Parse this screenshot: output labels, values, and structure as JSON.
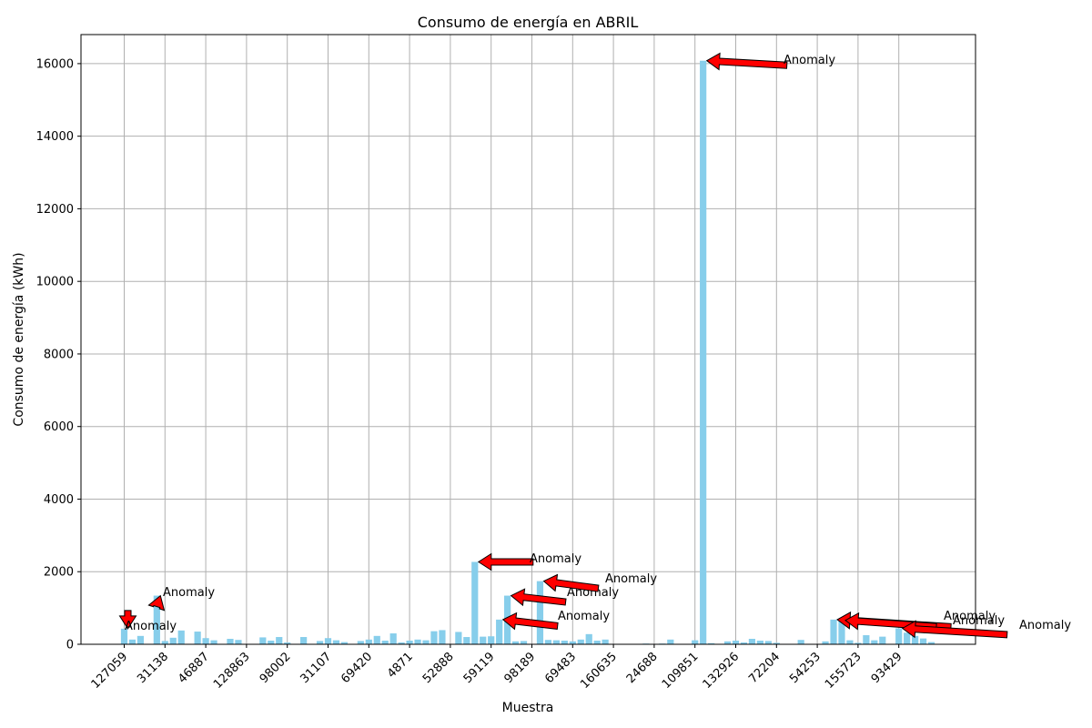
{
  "colors": {
    "bar": "#87CEEB",
    "arrow": "#FF0000",
    "grid": "#B0B0B0"
  },
  "chart_data": {
    "type": "bar",
    "title": "Consumo de energía en ABRIL",
    "xlabel": "Muestra",
    "ylabel": "Consumo de energía (kWh)",
    "ylim": [
      0,
      16800
    ],
    "yticks": [
      0,
      2000,
      4000,
      6000,
      8000,
      10000,
      12000,
      14000,
      16000
    ],
    "grid": true,
    "xtick_labels": [
      "127059",
      "31138",
      "46887",
      "128863",
      "98002",
      "31107",
      "69420",
      "4871",
      "52888",
      "59119",
      "98189",
      "69483",
      "160635",
      "24688",
      "109851",
      "132926",
      "72204",
      "54253",
      "155723",
      "93429"
    ],
    "values": [
      430,
      130,
      230,
      0,
      1340,
      90,
      180,
      380,
      0,
      350,
      170,
      110,
      0,
      150,
      120,
      0,
      0,
      190,
      100,
      200,
      50,
      0,
      200,
      0,
      90,
      170,
      110,
      60,
      0,
      90,
      130,
      230,
      100,
      300,
      50,
      100,
      130,
      110,
      360,
      390,
      0,
      340,
      200,
      2270,
      210,
      220,
      680,
      1340,
      80,
      90,
      0,
      1740,
      120,
      110,
      100,
      80,
      130,
      280,
      100,
      130,
      0,
      0,
      0,
      0,
      20,
      0,
      20,
      130,
      0,
      0,
      110,
      16080,
      30,
      0,
      80,
      100,
      50,
      150,
      100,
      90,
      40,
      0,
      0,
      120,
      0,
      0,
      80,
      680,
      660,
      110,
      40,
      250,
      110,
      210,
      0,
      440,
      320,
      230,
      160,
      60
    ],
    "annotations": [
      {
        "text": "Anomaly",
        "index": 0
      },
      {
        "text": "Anomaly",
        "index": 4
      },
      {
        "text": "Anomaly",
        "index": 43
      },
      {
        "text": "Anomaly",
        "index": 46
      },
      {
        "text": "Anomaly",
        "index": 47
      },
      {
        "text": "Anomaly",
        "index": 51
      },
      {
        "text": "Anomaly",
        "index": 71
      },
      {
        "text": "Anomaly",
        "index": 87
      },
      {
        "text": "Anomaly",
        "index": 88
      },
      {
        "text": "Anomaly",
        "index": 95
      }
    ]
  }
}
